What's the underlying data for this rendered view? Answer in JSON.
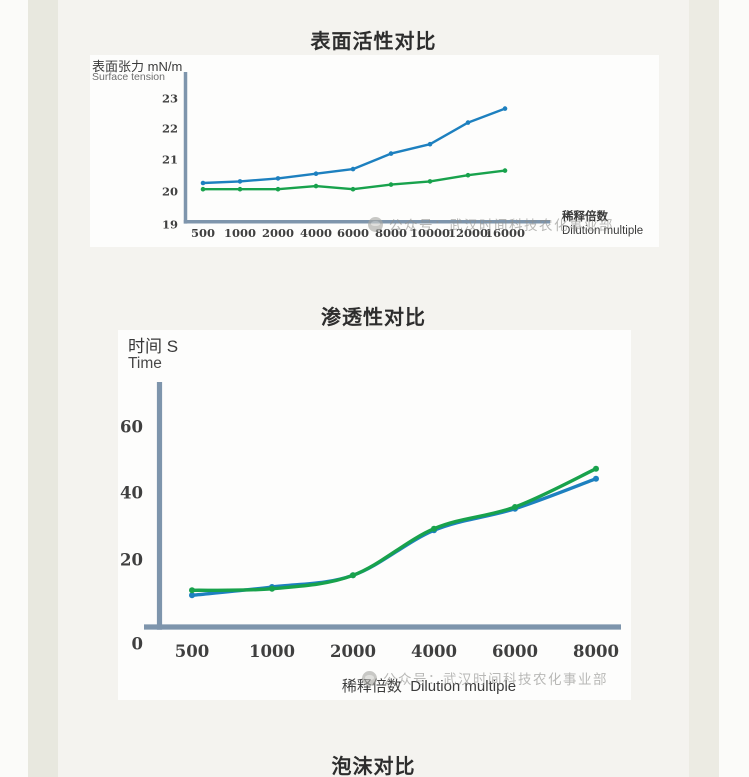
{
  "page": {
    "watermark": "公众号：武汉时间科技农化事业部",
    "colors": {
      "blue": "#1d80bf",
      "green": "#18a24c",
      "axis": "#7e95ac",
      "panel": "#fdfdfc",
      "content_bg": "#f4f3ef",
      "strip": "#e8e8df",
      "title": "#2d2d2d"
    },
    "footer_title": "泡沫对比"
  },
  "chart_data": [
    {
      "type": "line",
      "title": "表面活性对比",
      "ylabel_cn": "表面张力 mN/m",
      "ylabel_en": "Surface tension",
      "xlabel_cn": "稀释倍数",
      "xlabel_en": "Dilution multiple",
      "categories": [
        500,
        1000,
        2000,
        4000,
        6000,
        8000,
        10000,
        12000,
        16000
      ],
      "yticks": [
        23,
        22,
        21,
        20,
        19
      ],
      "ylim": [
        19,
        23.6
      ],
      "grid": false,
      "legend": "none",
      "series": [
        {
          "name": "blue-line",
          "color": "#1d80bf",
          "values": [
            20.3,
            20.35,
            20.45,
            20.6,
            20.75,
            21.25,
            21.55,
            22.25,
            22.7
          ]
        },
        {
          "name": "green-line",
          "color": "#18a24c",
          "values": [
            20.1,
            20.1,
            20.1,
            20.2,
            20.1,
            20.25,
            20.35,
            20.55,
            20.7
          ]
        }
      ]
    },
    {
      "type": "line",
      "title": "渗透性对比",
      "ylabel_cn": "时间 S",
      "ylabel_en": "Time",
      "xlabel_cn": "稀释倍数",
      "xlabel_en": "Dilution multiple",
      "categories": [
        500,
        1000,
        2000,
        4000,
        6000,
        8000
      ],
      "yticks": [
        60,
        40,
        20,
        0
      ],
      "ylim": [
        0,
        72
      ],
      "grid": false,
      "legend": "none",
      "series": [
        {
          "name": "blue-line",
          "color": "#1d80bf",
          "values": [
            9.5,
            12,
            15.5,
            29,
            35.5,
            44.5
          ]
        },
        {
          "name": "green-line",
          "color": "#18a24c",
          "values": [
            11,
            11.5,
            15.5,
            29.5,
            36,
            47.5
          ]
        }
      ]
    }
  ]
}
